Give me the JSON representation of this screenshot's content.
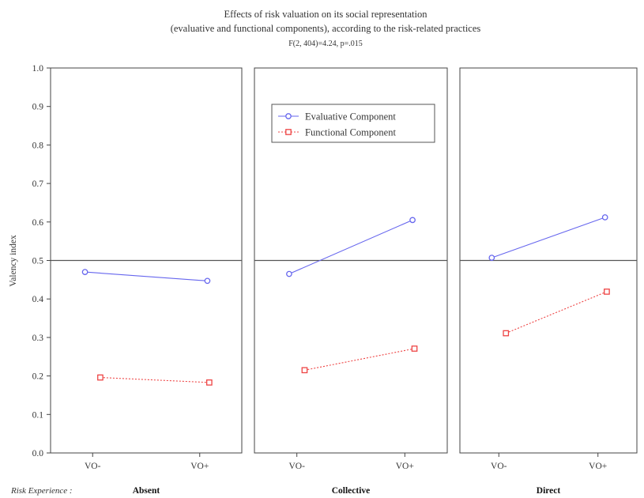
{
  "chart_data": {
    "type": "line",
    "title": [
      "Effects of risk valuation on its social representation",
      "(evaluative and functional components), according to the risk-related practices",
      "F(2, 404)=4.24, p=.015"
    ],
    "ylabel": "Valency index",
    "ylim": [
      0,
      1
    ],
    "yticks": [
      "0.0",
      "0.1",
      "0.2",
      "0.3",
      "0.4",
      "0.5",
      "0.6",
      "0.7",
      "0.8",
      "0.9",
      "1.0"
    ],
    "reference_line": 0.5,
    "categories": [
      "VO-",
      "VO+"
    ],
    "facet_prefix": "Risk Experience :",
    "facets": [
      "Absent",
      "Collective",
      "Direct"
    ],
    "legend_position": "top-center of middle panel",
    "series": [
      {
        "name": "Evaluative Component",
        "color": "#6666ee",
        "marker": "circle",
        "line_style": "solid",
        "values": [
          [
            0.47,
            0.447
          ],
          [
            0.465,
            0.605
          ],
          [
            0.507,
            0.612
          ]
        ]
      },
      {
        "name": "Functional Component",
        "color": "#ee4444",
        "marker": "square",
        "line_style": "dotted",
        "values": [
          [
            0.196,
            0.183
          ],
          [
            0.215,
            0.271
          ],
          [
            0.311,
            0.419
          ]
        ]
      }
    ]
  }
}
